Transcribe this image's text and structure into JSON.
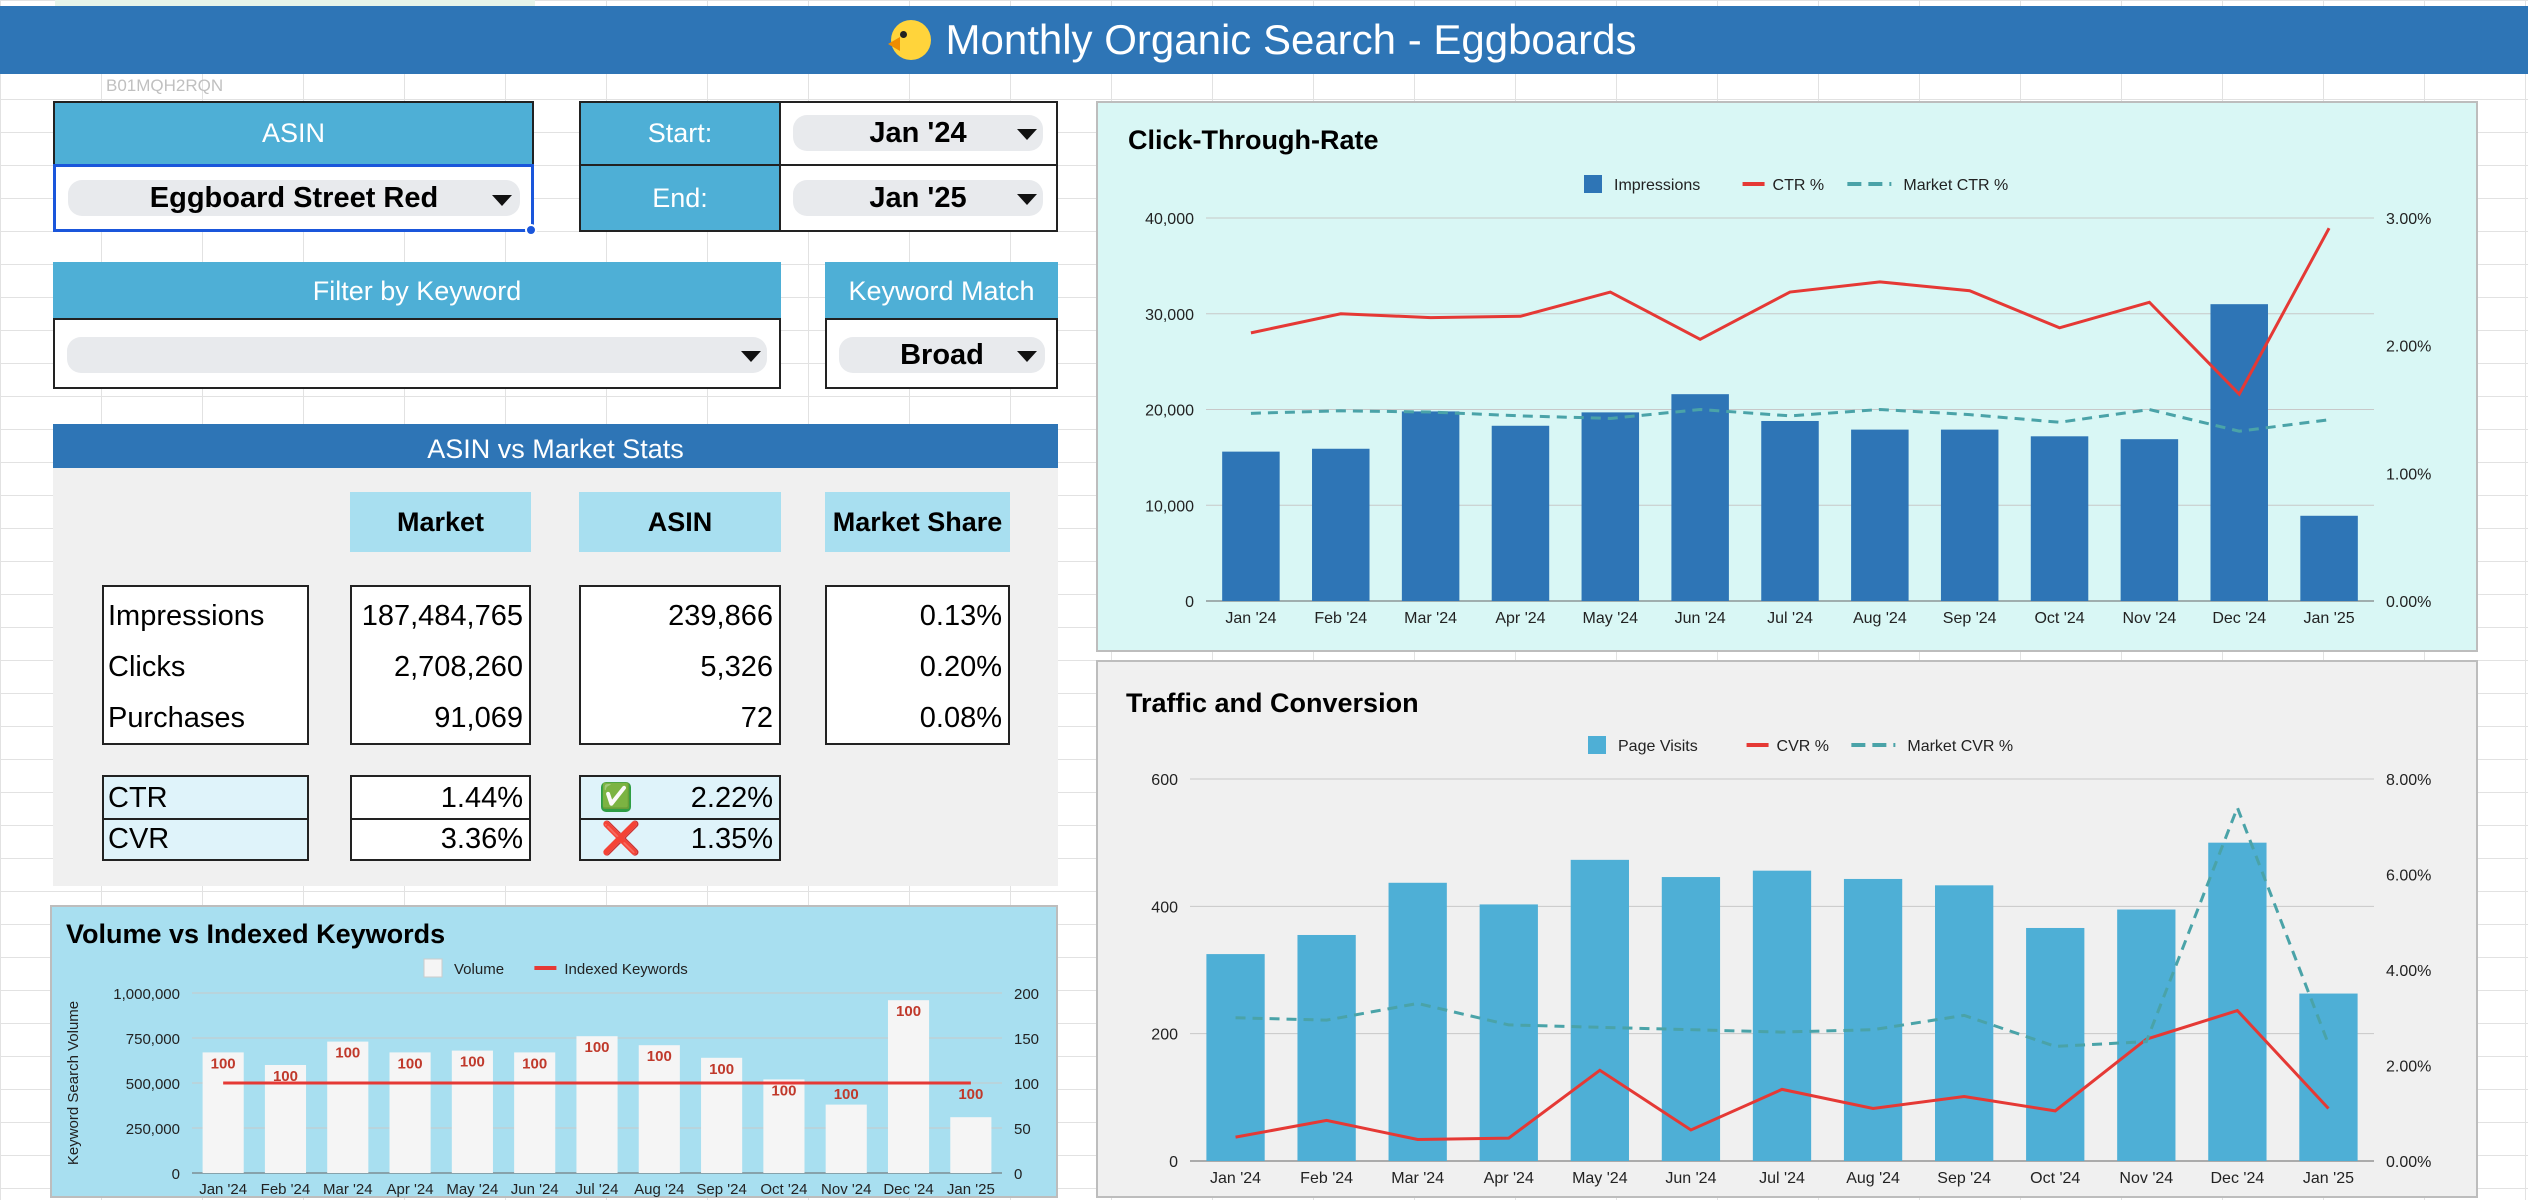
{
  "title": "Monthly Organic Search - Eggboards",
  "asin_code": "B01MQH2RQN",
  "filters": {
    "asin_label": "ASIN",
    "asin_value": "Eggboard Street Red",
    "start_label": "Start:",
    "start_value": "Jan '24",
    "end_label": "End:",
    "end_value": "Jan '25",
    "keyword_label": "Filter by Keyword",
    "keyword_value": "",
    "match_label": "Keyword Match",
    "match_value": "Broad"
  },
  "stats": {
    "title": "ASIN vs Market Stats",
    "headers": [
      "Market",
      "ASIN",
      "Market Share"
    ],
    "rows": [
      {
        "label": "Impressions",
        "market": "187,484,765",
        "asin": "239,866",
        "share": "0.13%"
      },
      {
        "label": "Clicks",
        "market": "2,708,260",
        "asin": "5,326",
        "share": "0.20%"
      },
      {
        "label": "Purchases",
        "market": "91,069",
        "asin": "72",
        "share": "0.08%"
      }
    ],
    "rates": [
      {
        "label": "CTR",
        "market": "1.44%",
        "asin": "2.22%",
        "status": "check",
        "icon": "✅"
      },
      {
        "label": "CVR",
        "market": "3.36%",
        "asin": "1.35%",
        "status": "cross",
        "icon": "❌"
      }
    ]
  },
  "chart_data": [
    {
      "type": "bar",
      "title": "Click-Through-Rate",
      "categories": [
        "Jan '24",
        "Feb '24",
        "Mar '24",
        "Apr '24",
        "May '24",
        "Jun '24",
        "Jul '24",
        "Aug '24",
        "Sep '24",
        "Oct '24",
        "Nov '24",
        "Dec '24",
        "Jan '25"
      ],
      "legend": [
        "Impressions",
        "CTR %",
        "Market CTR %"
      ],
      "series": [
        {
          "name": "Impressions",
          "kind": "bar",
          "axis": "left",
          "values": [
            15600,
            15900,
            19800,
            18300,
            19700,
            21600,
            18800,
            17900,
            17900,
            17200,
            16900,
            31000,
            8900
          ]
        },
        {
          "name": "CTR %",
          "kind": "line",
          "axis": "right",
          "values": [
            2.1,
            2.25,
            2.22,
            2.23,
            2.42,
            2.05,
            2.42,
            2.5,
            2.43,
            2.14,
            2.34,
            1.62,
            2.92
          ]
        },
        {
          "name": "Market CTR %",
          "kind": "dashed",
          "axis": "right",
          "values": [
            1.47,
            1.49,
            1.48,
            1.45,
            1.43,
            1.5,
            1.45,
            1.5,
            1.46,
            1.4,
            1.5,
            1.33,
            1.42
          ]
        }
      ],
      "ylim": [
        0,
        40000
      ],
      "yticks": [
        "0",
        "10,000",
        "20,000",
        "30,000",
        "40,000"
      ],
      "y2lim": [
        0,
        3
      ],
      "y2ticks": [
        "0.00%",
        "1.00%",
        "2.00%",
        "3.00%"
      ],
      "colors": {
        "bar": "#2e75b6",
        "line": "#e53935",
        "dashed": "#4aa3a8"
      },
      "background": "#d9f7f5"
    },
    {
      "type": "bar",
      "title": "Traffic and Conversion",
      "categories": [
        "Jan '24",
        "Feb '24",
        "Mar '24",
        "Apr '24",
        "May '24",
        "Jun '24",
        "Jul '24",
        "Aug '24",
        "Sep '24",
        "Oct '24",
        "Nov '24",
        "Dec '24",
        "Jan '25"
      ],
      "legend": [
        "Page Visits",
        "CVR %",
        "Market CVR %"
      ],
      "series": [
        {
          "name": "Page Visits",
          "kind": "bar",
          "axis": "left",
          "values": [
            325,
            355,
            437,
            403,
            473,
            446,
            456,
            443,
            433,
            366,
            395,
            500,
            263
          ]
        },
        {
          "name": "CVR %",
          "kind": "line",
          "axis": "right",
          "values": [
            0.5,
            0.85,
            0.45,
            0.48,
            1.9,
            0.65,
            1.5,
            1.1,
            1.35,
            1.05,
            2.55,
            3.15,
            1.1
          ]
        },
        {
          "name": "Market CVR %",
          "kind": "dashed",
          "axis": "right",
          "values": [
            3.0,
            2.95,
            3.3,
            2.85,
            2.8,
            2.75,
            2.7,
            2.75,
            3.05,
            2.4,
            2.5,
            7.4,
            2.45
          ]
        }
      ],
      "ylim": [
        0,
        600
      ],
      "yticks": [
        "0",
        "200",
        "400",
        "600"
      ],
      "y2lim": [
        0,
        8
      ],
      "y2ticks": [
        "0.00%",
        "2.00%",
        "4.00%",
        "6.00%",
        "8.00%"
      ],
      "colors": {
        "bar": "#4eafd6",
        "line": "#e53935",
        "dashed": "#4aa3a8"
      },
      "background": "#f0f0f0"
    },
    {
      "type": "bar",
      "title": "Volume vs Indexed Keywords",
      "categories": [
        "Jan '24",
        "Feb '24",
        "Mar '24",
        "Apr '24",
        "May '24",
        "Jun '24",
        "Jul '24",
        "Aug '24",
        "Sep '24",
        "Oct '24",
        "Nov '24",
        "Dec '24",
        "Jan '25"
      ],
      "legend": [
        "Volume",
        "Indexed Keywords"
      ],
      "ylabel": "Keyword Search Volume",
      "series": [
        {
          "name": "Volume",
          "kind": "bar",
          "axis": "left",
          "values": [
            670000,
            600000,
            730000,
            670000,
            680000,
            670000,
            760000,
            710000,
            640000,
            520000,
            380000,
            960000,
            310000
          ]
        },
        {
          "name": "Indexed Keywords",
          "kind": "line",
          "axis": "right",
          "values": [
            100,
            100,
            100,
            100,
            100,
            100,
            100,
            100,
            100,
            100,
            100,
            100,
            100
          ]
        }
      ],
      "data_labels": [
        "100",
        "100",
        "100",
        "100",
        "100",
        "100",
        "100",
        "100",
        "100",
        "100",
        "100",
        "100",
        "100"
      ],
      "ylim": [
        0,
        1000000
      ],
      "yticks": [
        "0",
        "250,000",
        "500,000",
        "750,000",
        "1,000,000"
      ],
      "y2lim": [
        0,
        200
      ],
      "y2ticks": [
        "0",
        "50",
        "100",
        "150",
        "200"
      ],
      "colors": {
        "bar": "#f5f5f5",
        "line": "#e53935"
      },
      "background": "#a8dff0"
    }
  ]
}
